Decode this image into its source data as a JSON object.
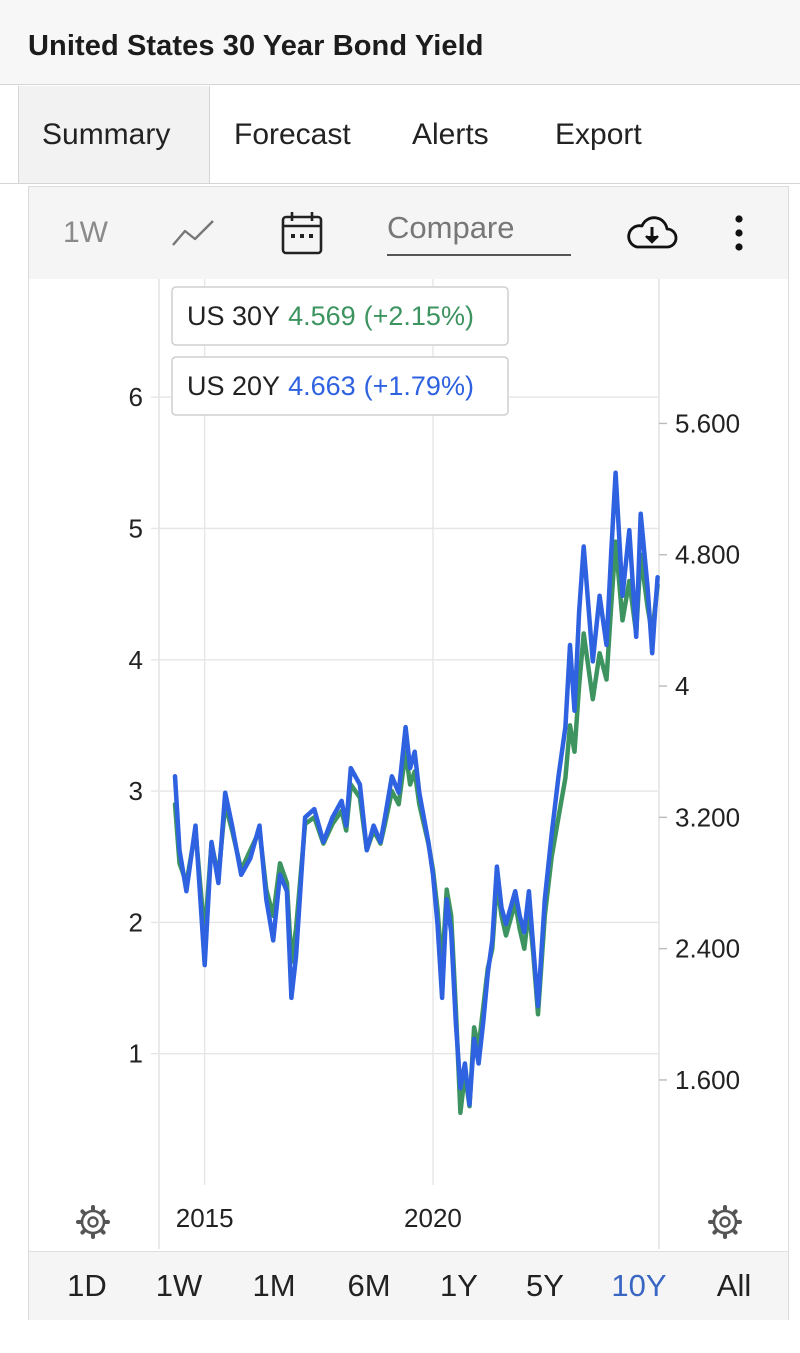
{
  "page_title": "United States 30 Year Bond Yield",
  "tabs": [
    {
      "label": "Summary",
      "active": true
    },
    {
      "label": "Forecast"
    },
    {
      "label": "Alerts"
    },
    {
      "label": "Export"
    }
  ],
  "toolbar": {
    "interval": "1W",
    "chart_type_icon": "line-chart-icon",
    "calendar_icon": "calendar-icon",
    "compare_label": "Compare",
    "download_icon": "cloud-download-icon",
    "more_icon": "more-vertical-icon",
    "settings_icon": "gear-icon"
  },
  "periods": [
    "1D",
    "1W",
    "1M",
    "6M",
    "1Y",
    "5Y",
    "10Y",
    "All"
  ],
  "active_period": "10Y",
  "colors": {
    "us30y": "#3d9460",
    "us20y": "#2e62e0",
    "accent": "#3a66c4"
  },
  "chart_data": {
    "type": "line",
    "series": [
      {
        "name": "US 30Y",
        "value": "4.569",
        "change": "(+2.15%)",
        "color": "#3d9460",
        "axis": "left",
        "x": [
          2014.35,
          2014.45,
          2014.6,
          2014.8,
          2015.0,
          2015.15,
          2015.3,
          2015.45,
          2015.6,
          2015.8,
          2016.0,
          2016.2,
          2016.35,
          2016.5,
          2016.65,
          2016.8,
          2016.9,
          2017.0,
          2017.2,
          2017.4,
          2017.6,
          2017.8,
          2018.0,
          2018.1,
          2018.2,
          2018.4,
          2018.55,
          2018.7,
          2018.85,
          2018.95,
          2019.1,
          2019.25,
          2019.4,
          2019.5,
          2019.6,
          2019.7,
          2019.8,
          2019.9,
          2020.0,
          2020.1,
          2020.2,
          2020.3,
          2020.4,
          2020.5,
          2020.6,
          2020.7,
          2020.8,
          2020.9,
          2021.0,
          2021.1,
          2021.2,
          2021.3,
          2021.4,
          2021.5,
          2021.6,
          2021.8,
          2021.9,
          2022.0,
          2022.1,
          2022.2,
          2022.3,
          2022.45,
          2022.6,
          2022.75,
          2022.9,
          2023.0,
          2023.1,
          2023.2,
          2023.3,
          2023.5,
          2023.65,
          2023.8,
          2023.9,
          2024.0,
          2024.15,
          2024.3,
          2024.45,
          2024.55,
          2024.7,
          2024.8,
          2024.85,
          2024.92
        ],
        "y": [
          2.9,
          2.45,
          2.3,
          2.7,
          1.9,
          2.6,
          2.35,
          2.9,
          2.7,
          2.4,
          2.55,
          2.7,
          2.25,
          2.05,
          2.45,
          2.3,
          1.7,
          1.95,
          2.75,
          2.8,
          2.6,
          2.75,
          2.85,
          2.7,
          3.05,
          2.95,
          2.55,
          2.7,
          2.6,
          2.75,
          3.0,
          2.9,
          3.3,
          3.05,
          3.15,
          2.9,
          2.75,
          2.6,
          2.4,
          2.1,
          1.65,
          2.25,
          2.05,
          1.35,
          0.55,
          0.85,
          0.6,
          1.2,
          1.05,
          1.35,
          1.65,
          1.8,
          2.3,
          2.05,
          1.9,
          2.15,
          1.95,
          1.8,
          2.1,
          1.75,
          1.3,
          2.05,
          2.5,
          2.8,
          3.1,
          3.5,
          3.3,
          3.8,
          4.2,
          3.7,
          4.05,
          3.85,
          4.4,
          4.9,
          4.3,
          4.6,
          4.2,
          4.8,
          4.4,
          4.2,
          4.35,
          4.569
        ]
      },
      {
        "name": "US 20Y",
        "value": "4.663",
        "change": "(+1.79%)",
        "color": "#2e62e0",
        "axis": "right",
        "x": [
          2014.35,
          2014.45,
          2014.6,
          2014.8,
          2015.0,
          2015.15,
          2015.3,
          2015.45,
          2015.6,
          2015.8,
          2016.0,
          2016.2,
          2016.35,
          2016.5,
          2016.65,
          2016.8,
          2016.9,
          2017.0,
          2017.2,
          2017.4,
          2017.6,
          2017.8,
          2018.0,
          2018.1,
          2018.2,
          2018.4,
          2018.55,
          2018.7,
          2018.85,
          2018.95,
          2019.1,
          2019.25,
          2019.4,
          2019.5,
          2019.6,
          2019.7,
          2019.8,
          2019.9,
          2020.0,
          2020.1,
          2020.2,
          2020.3,
          2020.4,
          2020.5,
          2020.6,
          2020.7,
          2020.8,
          2020.9,
          2021.0,
          2021.1,
          2021.2,
          2021.3,
          2021.4,
          2021.5,
          2021.6,
          2021.8,
          2021.9,
          2022.0,
          2022.1,
          2022.2,
          2022.3,
          2022.45,
          2022.6,
          2022.75,
          2022.9,
          2023.0,
          2023.1,
          2023.2,
          2023.3,
          2023.5,
          2023.65,
          2023.8,
          2023.9,
          2024.0,
          2024.15,
          2024.3,
          2024.45,
          2024.55,
          2024.7,
          2024.8,
          2024.85,
          2024.92
        ],
        "y": [
          3.45,
          3.0,
          2.75,
          3.15,
          2.3,
          3.05,
          2.8,
          3.35,
          3.15,
          2.85,
          2.95,
          3.15,
          2.7,
          2.45,
          2.85,
          2.75,
          2.1,
          2.35,
          3.2,
          3.25,
          3.05,
          3.2,
          3.3,
          3.15,
          3.5,
          3.4,
          3.0,
          3.15,
          3.05,
          3.2,
          3.45,
          3.35,
          3.75,
          3.5,
          3.6,
          3.35,
          3.2,
          3.05,
          2.85,
          2.55,
          2.1,
          2.7,
          2.5,
          1.95,
          1.55,
          1.7,
          1.45,
          1.85,
          1.7,
          1.95,
          2.25,
          2.45,
          2.9,
          2.65,
          2.55,
          2.75,
          2.6,
          2.5,
          2.75,
          2.4,
          2.05,
          2.7,
          3.1,
          3.45,
          3.75,
          4.25,
          3.85,
          4.45,
          4.85,
          4.15,
          4.55,
          4.25,
          4.8,
          5.3,
          4.55,
          4.95,
          4.3,
          5.05,
          4.6,
          4.2,
          4.4,
          4.663
        ]
      }
    ],
    "x_ticks": [
      "2015",
      "2020"
    ],
    "x_tick_values": [
      2015,
      2020
    ],
    "xlim": [
      2014.0,
      2024.95
    ],
    "y_left_ticks": [
      "1",
      "2",
      "3",
      "4",
      "5",
      "6"
    ],
    "y_left_values": [
      1,
      2,
      3,
      4,
      5,
      6
    ],
    "ylim_left": [
      0.0,
      6.9
    ],
    "y_right_ticks": [
      "1.600",
      "2.400",
      "3.200",
      "4",
      "4.800",
      "5.600"
    ],
    "y_right_values": [
      1.6,
      2.4,
      3.2,
      4.0,
      4.8,
      5.6
    ],
    "ylim_right": [
      0.96,
      6.48
    ],
    "grid": true,
    "legend": "top-left"
  }
}
